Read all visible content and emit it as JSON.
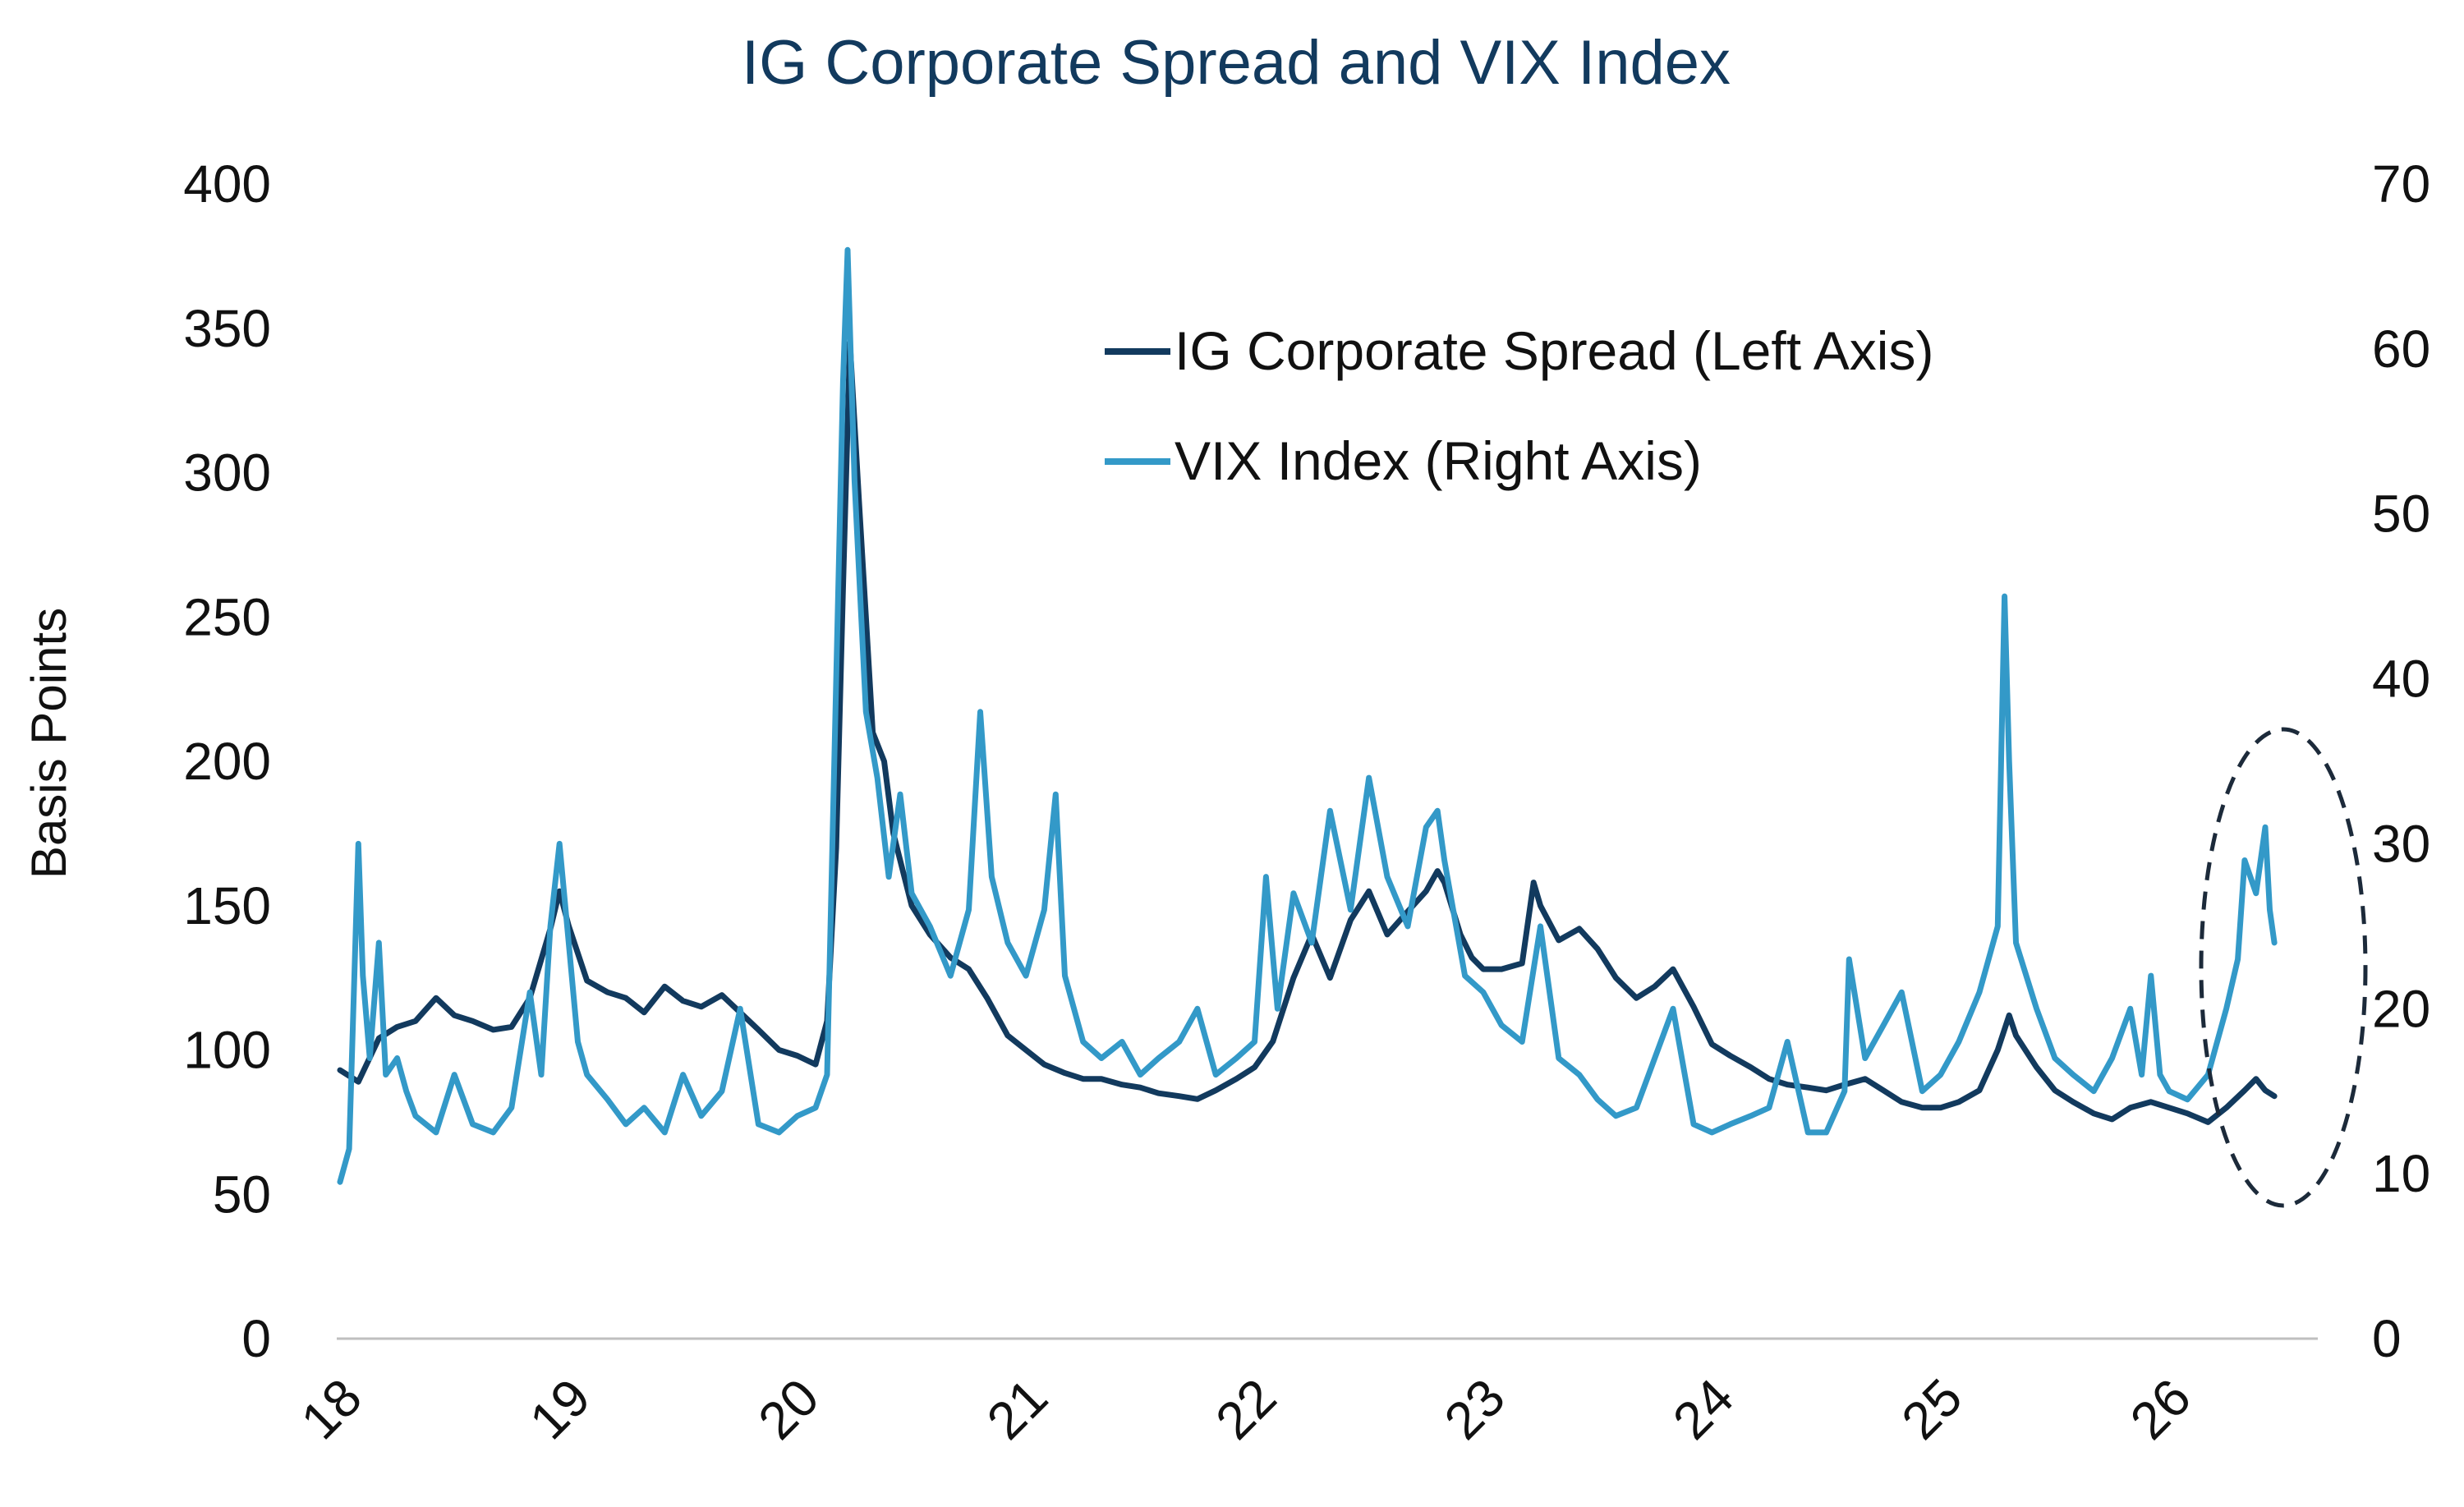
{
  "chart_data": {
    "type": "line",
    "title": "IG Corporate Spread and VIX Index",
    "ylabel": "Basis Points",
    "y2label": "",
    "ylim": [
      0,
      400
    ],
    "y2lim": [
      0,
      70
    ],
    "xlim": [
      2018,
      2026.65
    ],
    "x_ticks": [
      "18",
      "19",
      "20",
      "21",
      "22",
      "23",
      "24",
      "25",
      "26"
    ],
    "y_ticks": [
      "0",
      "50",
      "100",
      "150",
      "200",
      "250",
      "300",
      "350",
      "400"
    ],
    "y2_ticks": [
      "0",
      "10",
      "20",
      "30",
      "40",
      "50",
      "60",
      "70"
    ],
    "grid": false,
    "legend_position": "top-center",
    "annotation": "dashed ellipse highlighting 2026 data",
    "series": [
      {
        "name": "IG Corporate Spread (Left Axis)",
        "axis": "left",
        "color": "#123a5e",
        "points": [
          [
            2018.0,
            93
          ],
          [
            2018.08,
            89
          ],
          [
            2018.17,
            104
          ],
          [
            2018.25,
            108
          ],
          [
            2018.33,
            110
          ],
          [
            2018.42,
            118
          ],
          [
            2018.5,
            112
          ],
          [
            2018.58,
            110
          ],
          [
            2018.67,
            107
          ],
          [
            2018.75,
            108
          ],
          [
            2018.83,
            118
          ],
          [
            2018.92,
            142
          ],
          [
            2018.96,
            155
          ],
          [
            2019.0,
            143
          ],
          [
            2019.08,
            124
          ],
          [
            2019.17,
            120
          ],
          [
            2019.25,
            118
          ],
          [
            2019.33,
            113
          ],
          [
            2019.42,
            122
          ],
          [
            2019.5,
            117
          ],
          [
            2019.58,
            115
          ],
          [
            2019.67,
            119
          ],
          [
            2019.75,
            113
          ],
          [
            2019.83,
            107
          ],
          [
            2019.92,
            100
          ],
          [
            2020.0,
            98
          ],
          [
            2020.08,
            95
          ],
          [
            2020.13,
            110
          ],
          [
            2020.17,
            170
          ],
          [
            2020.2,
            260
          ],
          [
            2020.23,
            345
          ],
          [
            2020.27,
            290
          ],
          [
            2020.3,
            250
          ],
          [
            2020.33,
            210
          ],
          [
            2020.38,
            200
          ],
          [
            2020.42,
            175
          ],
          [
            2020.5,
            150
          ],
          [
            2020.58,
            140
          ],
          [
            2020.67,
            132
          ],
          [
            2020.75,
            128
          ],
          [
            2020.83,
            118
          ],
          [
            2020.92,
            105
          ],
          [
            2021.0,
            100
          ],
          [
            2021.08,
            95
          ],
          [
            2021.17,
            92
          ],
          [
            2021.25,
            90
          ],
          [
            2021.33,
            90
          ],
          [
            2021.42,
            88
          ],
          [
            2021.5,
            87
          ],
          [
            2021.58,
            85
          ],
          [
            2021.67,
            84
          ],
          [
            2021.75,
            83
          ],
          [
            2021.83,
            86
          ],
          [
            2021.92,
            90
          ],
          [
            2022.0,
            94
          ],
          [
            2022.08,
            103
          ],
          [
            2022.17,
            125
          ],
          [
            2022.25,
            140
          ],
          [
            2022.33,
            125
          ],
          [
            2022.42,
            145
          ],
          [
            2022.5,
            155
          ],
          [
            2022.58,
            140
          ],
          [
            2022.67,
            148
          ],
          [
            2022.75,
            155
          ],
          [
            2022.8,
            162
          ],
          [
            2022.83,
            158
          ],
          [
            2022.9,
            140
          ],
          [
            2022.95,
            132
          ],
          [
            2023.0,
            128
          ],
          [
            2023.08,
            128
          ],
          [
            2023.17,
            130
          ],
          [
            2023.22,
            158
          ],
          [
            2023.25,
            150
          ],
          [
            2023.33,
            138
          ],
          [
            2023.42,
            142
          ],
          [
            2023.5,
            135
          ],
          [
            2023.58,
            125
          ],
          [
            2023.67,
            118
          ],
          [
            2023.75,
            122
          ],
          [
            2023.83,
            128
          ],
          [
            2023.92,
            115
          ],
          [
            2024.0,
            102
          ],
          [
            2024.08,
            98
          ],
          [
            2024.17,
            94
          ],
          [
            2024.25,
            90
          ],
          [
            2024.33,
            88
          ],
          [
            2024.42,
            87
          ],
          [
            2024.5,
            86
          ],
          [
            2024.58,
            88
          ],
          [
            2024.67,
            90
          ],
          [
            2024.75,
            86
          ],
          [
            2024.83,
            82
          ],
          [
            2024.92,
            80
          ],
          [
            2025.0,
            80
          ],
          [
            2025.08,
            82
          ],
          [
            2025.17,
            86
          ],
          [
            2025.25,
            100
          ],
          [
            2025.3,
            112
          ],
          [
            2025.33,
            105
          ],
          [
            2025.42,
            94
          ],
          [
            2025.5,
            86
          ],
          [
            2025.58,
            82
          ],
          [
            2025.67,
            78
          ],
          [
            2025.75,
            76
          ],
          [
            2025.83,
            80
          ],
          [
            2025.92,
            82
          ],
          [
            2026.0,
            80
          ],
          [
            2026.08,
            78
          ],
          [
            2026.17,
            75
          ],
          [
            2026.25,
            80
          ],
          [
            2026.33,
            86
          ],
          [
            2026.38,
            90
          ],
          [
            2026.42,
            86
          ],
          [
            2026.46,
            84
          ]
        ]
      },
      {
        "name": "VIX Index (Right Axis)",
        "axis": "right",
        "color": "#3399c8",
        "points": [
          [
            2018.0,
            9.5
          ],
          [
            2018.04,
            11.5
          ],
          [
            2018.08,
            30
          ],
          [
            2018.1,
            22
          ],
          [
            2018.13,
            17
          ],
          [
            2018.17,
            24
          ],
          [
            2018.2,
            16
          ],
          [
            2018.25,
            17
          ],
          [
            2018.29,
            15
          ],
          [
            2018.33,
            13.5
          ],
          [
            2018.42,
            12.5
          ],
          [
            2018.5,
            16
          ],
          [
            2018.58,
            13
          ],
          [
            2018.67,
            12.5
          ],
          [
            2018.75,
            14
          ],
          [
            2018.83,
            21
          ],
          [
            2018.88,
            16
          ],
          [
            2018.92,
            25
          ],
          [
            2018.96,
            30
          ],
          [
            2019.0,
            24
          ],
          [
            2019.04,
            18
          ],
          [
            2019.08,
            16
          ],
          [
            2019.17,
            14.5
          ],
          [
            2019.25,
            13
          ],
          [
            2019.33,
            14
          ],
          [
            2019.42,
            12.5
          ],
          [
            2019.5,
            16
          ],
          [
            2019.58,
            13.5
          ],
          [
            2019.67,
            15
          ],
          [
            2019.75,
            20
          ],
          [
            2019.83,
            13
          ],
          [
            2019.92,
            12.5
          ],
          [
            2020.0,
            13.5
          ],
          [
            2020.08,
            14
          ],
          [
            2020.13,
            16
          ],
          [
            2020.17,
            40
          ],
          [
            2020.2,
            58
          ],
          [
            2020.22,
            66
          ],
          [
            2020.25,
            52
          ],
          [
            2020.3,
            38
          ],
          [
            2020.35,
            34
          ],
          [
            2020.4,
            28
          ],
          [
            2020.45,
            33
          ],
          [
            2020.5,
            27
          ],
          [
            2020.58,
            25
          ],
          [
            2020.67,
            22
          ],
          [
            2020.75,
            26
          ],
          [
            2020.8,
            38
          ],
          [
            2020.85,
            28
          ],
          [
            2020.92,
            24
          ],
          [
            2021.0,
            22
          ],
          [
            2021.08,
            26
          ],
          [
            2021.13,
            33
          ],
          [
            2021.17,
            22
          ],
          [
            2021.25,
            18
          ],
          [
            2021.33,
            17
          ],
          [
            2021.42,
            18
          ],
          [
            2021.5,
            16
          ],
          [
            2021.58,
            17
          ],
          [
            2021.67,
            18
          ],
          [
            2021.75,
            20
          ],
          [
            2021.83,
            16
          ],
          [
            2021.92,
            17
          ],
          [
            2022.0,
            18
          ],
          [
            2022.05,
            28
          ],
          [
            2022.1,
            20
          ],
          [
            2022.17,
            27
          ],
          [
            2022.25,
            24
          ],
          [
            2022.33,
            32
          ],
          [
            2022.42,
            26
          ],
          [
            2022.5,
            34
          ],
          [
            2022.58,
            28
          ],
          [
            2022.67,
            25
          ],
          [
            2022.75,
            31
          ],
          [
            2022.8,
            32
          ],
          [
            2022.83,
            29
          ],
          [
            2022.92,
            22
          ],
          [
            2023.0,
            21
          ],
          [
            2023.08,
            19
          ],
          [
            2023.17,
            18
          ],
          [
            2023.25,
            25
          ],
          [
            2023.33,
            17
          ],
          [
            2023.42,
            16
          ],
          [
            2023.5,
            14.5
          ],
          [
            2023.58,
            13.5
          ],
          [
            2023.67,
            14
          ],
          [
            2023.75,
            17
          ],
          [
            2023.83,
            20
          ],
          [
            2023.92,
            13
          ],
          [
            2024.0,
            12.5
          ],
          [
            2024.08,
            13
          ],
          [
            2024.17,
            13.5
          ],
          [
            2024.25,
            14
          ],
          [
            2024.33,
            18
          ],
          [
            2024.42,
            12.5
          ],
          [
            2024.5,
            12.5
          ],
          [
            2024.58,
            15
          ],
          [
            2024.6,
            23
          ],
          [
            2024.67,
            17
          ],
          [
            2024.75,
            19
          ],
          [
            2024.83,
            21
          ],
          [
            2024.92,
            15
          ],
          [
            2025.0,
            16
          ],
          [
            2025.08,
            18
          ],
          [
            2025.17,
            21
          ],
          [
            2025.25,
            25
          ],
          [
            2025.28,
            45
          ],
          [
            2025.3,
            35
          ],
          [
            2025.33,
            24
          ],
          [
            2025.42,
            20
          ],
          [
            2025.5,
            17
          ],
          [
            2025.58,
            16
          ],
          [
            2025.67,
            15
          ],
          [
            2025.75,
            17
          ],
          [
            2025.83,
            20
          ],
          [
            2025.88,
            16
          ],
          [
            2025.92,
            22
          ],
          [
            2025.96,
            16
          ],
          [
            2026.0,
            15
          ],
          [
            2026.08,
            14.5
          ],
          [
            2026.17,
            16
          ],
          [
            2026.25,
            20
          ],
          [
            2026.3,
            23
          ],
          [
            2026.33,
            29
          ],
          [
            2026.38,
            27
          ],
          [
            2026.42,
            31
          ],
          [
            2026.44,
            26
          ],
          [
            2026.46,
            24
          ]
        ]
      }
    ]
  }
}
